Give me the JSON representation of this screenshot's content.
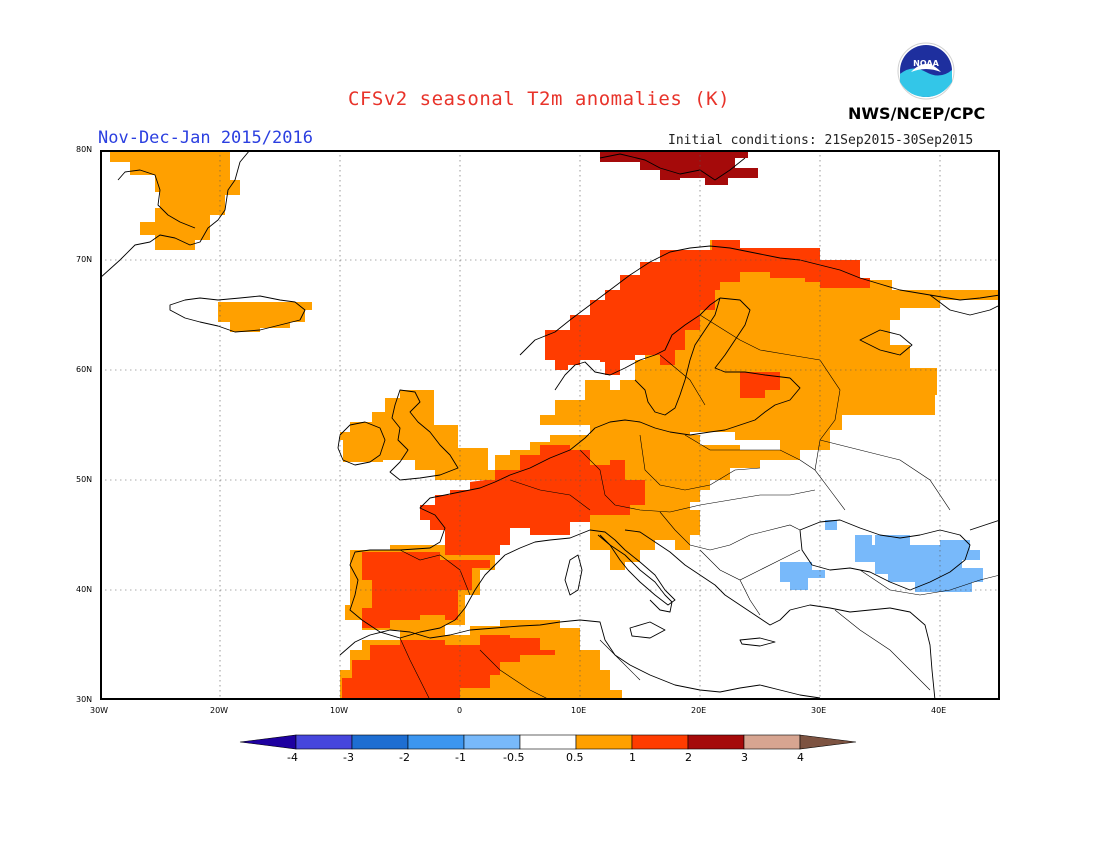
{
  "header": {
    "title": "CFSv2 seasonal T2m anomalies (K)",
    "period": "Nov-Dec-Jan 2015/2016",
    "initial_conditions": "Initial conditions: 21Sep2015-30Sep2015",
    "agency": "NWS/NCEP/CPC",
    "logo_text": "NOAA"
  },
  "map": {
    "region": "Europe",
    "lon_range": [
      -30,
      45
    ],
    "lat_range": [
      30,
      80
    ],
    "lat_labels": [
      "30N",
      "40N",
      "50N",
      "60N",
      "70N",
      "80N"
    ],
    "lon_labels": [
      "30W",
      "20W",
      "10W",
      "0",
      "10E",
      "20E",
      "30E",
      "40E"
    ],
    "grid_lines": "dotted",
    "anomaly_regions": [
      {
        "name": "Greenland",
        "category": "0.5-1",
        "color": "#ffa000"
      },
      {
        "name": "Iceland",
        "category": "0.5-1",
        "color": "#ffa000"
      },
      {
        "name": "Svalbard",
        "category": "2-3",
        "color": "#a50a0a"
      },
      {
        "name": "British Isles",
        "category": "0.5-1",
        "color": "#ffa000"
      },
      {
        "name": "Scandinavia",
        "category": "1-2",
        "color": "#ff3c00"
      },
      {
        "name": "Finland and NW Russia",
        "category": "0.5-1",
        "color": "#ffa000"
      },
      {
        "name": "Central Europe",
        "category": "0.5-1",
        "color": "#ffa000"
      },
      {
        "name": "France and Alps",
        "category": "1-2",
        "color": "#ff3c00"
      },
      {
        "name": "Iberian Peninsula",
        "category": "1-2",
        "color": "#ff3c00"
      },
      {
        "name": "North Africa",
        "category": "1-2",
        "color": "#ff3c00"
      },
      {
        "name": "Black Sea region",
        "category": "-1 to -0.5",
        "color": "#7db4ff"
      }
    ]
  },
  "colorbar": {
    "labels": [
      "-4",
      "-3",
      "-2",
      "-1",
      "-0.5",
      "0.5",
      "1",
      "2",
      "3",
      "4"
    ],
    "colors": [
      "#1e00a0",
      "#4646dc",
      "#1e6ed2",
      "#3c96f0",
      "#78b9fa",
      "#ffffff",
      "#ffa000",
      "#ff3c00",
      "#a50a0a",
      "#d7a591",
      "#7d5341"
    ]
  }
}
